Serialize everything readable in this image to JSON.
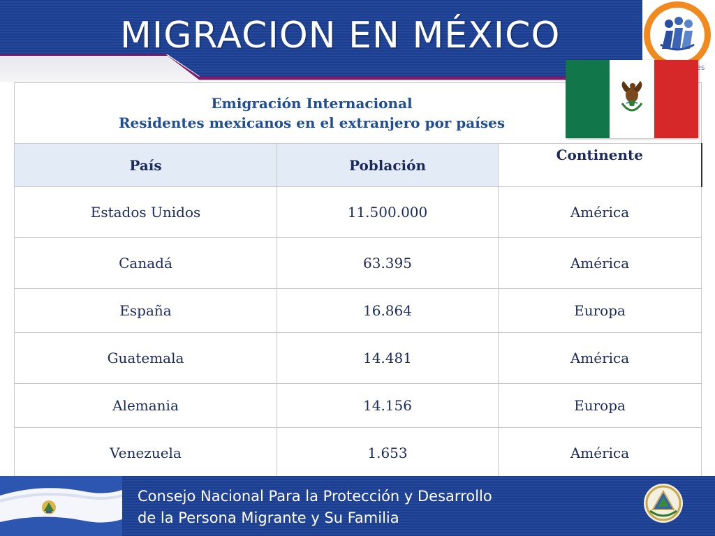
{
  "header": {
    "title": "MIGRACION EN MÉXICO",
    "logo_caption": "es"
  },
  "table": {
    "caption_line1": "Emigración Internacional",
    "caption_line2": "Residentes mexicanos en el extranjero por países",
    "columns": [
      "País",
      "Población",
      "Continente"
    ],
    "rows": [
      [
        "Estados Unidos",
        "11.500.000",
        "América"
      ],
      [
        "Canadá",
        "63.395",
        "América"
      ],
      [
        "España",
        "16.864",
        "Europa"
      ],
      [
        "Guatemala",
        "14.481",
        "América"
      ],
      [
        "Alemania",
        "14.156",
        "Europa"
      ],
      [
        "Venezuela",
        "1.653",
        "América"
      ]
    ]
  },
  "footer": {
    "line1": "Consejo Nacional Para la Protección y Desarrollo",
    "line2": "de la Persona Migrante y Su Familia"
  },
  "colors": {
    "header_blue": "#1c3c8c",
    "accent_purple": "#7a1b6b",
    "text_navy": "#1b2a5a",
    "caption_blue": "#1f4e96",
    "logo_orange": "#f08a1e"
  },
  "icons": [
    "people-logo-icon",
    "mexico-flag-icon",
    "el-salvador-flag-icon",
    "el-salvador-seal-icon"
  ]
}
